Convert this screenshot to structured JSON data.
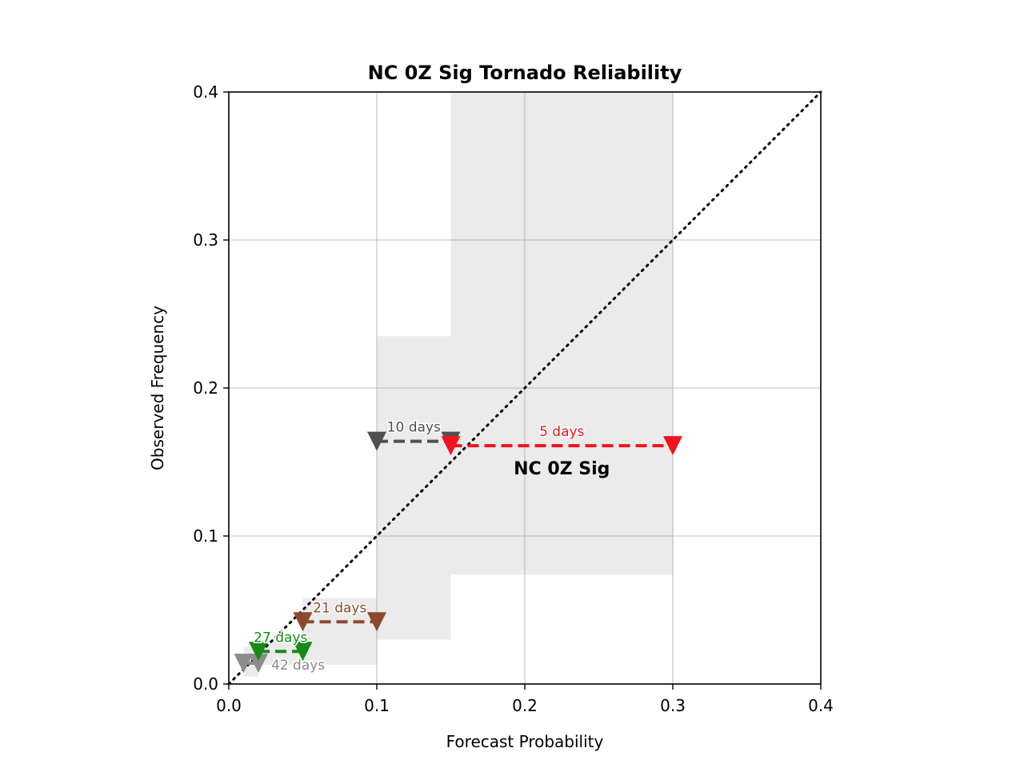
{
  "chart_data": {
    "type": "scatter",
    "title": "NC 0Z Sig Tornado Reliability",
    "xlabel": "Forecast Probability",
    "ylabel": "Observed Frequency",
    "xlim": [
      0.0,
      0.4
    ],
    "ylim": [
      0.0,
      0.4
    ],
    "x_ticks": [
      "0.0",
      "0.1",
      "0.2",
      "0.3",
      "0.4"
    ],
    "y_ticks": [
      "0.0",
      "0.1",
      "0.2",
      "0.3",
      "0.4"
    ],
    "grid": true,
    "reference_line": {
      "style": "dotted",
      "from": [
        0,
        0
      ],
      "to": [
        0.4,
        0.4
      ]
    },
    "annotation": "NC 0Z Sig",
    "bins": [
      {
        "label": "42 days",
        "x_lo": 0.01,
        "x_hi": 0.02,
        "obs": 0.014,
        "ci": [
          0.005,
          0.025
        ],
        "color": "#8c8c8c"
      },
      {
        "label": "27 days",
        "x_lo": 0.02,
        "x_hi": 0.05,
        "obs": 0.022,
        "ci": [
          0.013,
          0.03
        ],
        "color": "#178a17"
      },
      {
        "label": "21 days",
        "x_lo": 0.05,
        "x_hi": 0.1,
        "obs": 0.042,
        "ci": [
          0.013,
          0.058
        ],
        "color": "#8b4a2b"
      },
      {
        "label": "10 days",
        "x_lo": 0.1,
        "x_hi": 0.15,
        "obs": 0.164,
        "ci": [
          0.03,
          0.235
        ],
        "color": "#505050"
      },
      {
        "label": "5 days",
        "x_lo": 0.15,
        "x_hi": 0.3,
        "obs": 0.161,
        "ci": [
          0.074,
          0.4
        ],
        "color": "#f0141e"
      }
    ]
  }
}
